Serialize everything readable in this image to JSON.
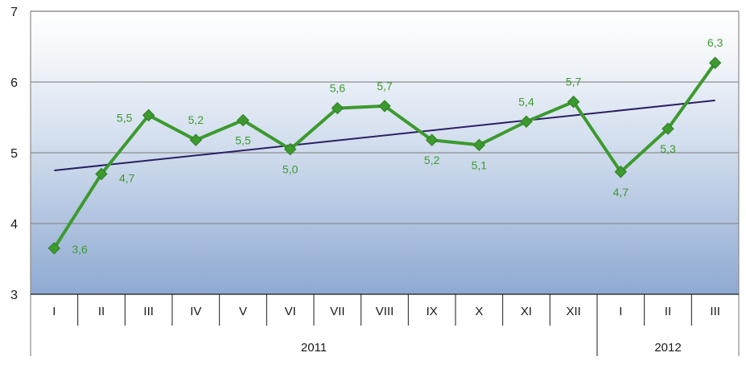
{
  "chart_data": {
    "type": "line",
    "categories": [
      "I",
      "II",
      "III",
      "IV",
      "V",
      "VI",
      "VII",
      "VIII",
      "IX",
      "X",
      "XI",
      "XII",
      "I",
      "II",
      "III"
    ],
    "groups": [
      {
        "label": "2011",
        "count": 12
      },
      {
        "label": "2012",
        "count": 3
      }
    ],
    "series": [
      {
        "values": [
          3.65,
          4.7,
          5.53,
          5.18,
          5.46,
          5.05,
          5.63,
          5.66,
          5.18,
          5.11,
          5.44,
          5.72,
          4.73,
          5.34,
          6.27
        ],
        "labels": [
          "3,6",
          "4,7",
          "5,5",
          "5,2",
          "5,5",
          "5,0",
          "5,6",
          "5,7",
          "5,2",
          "5,1",
          "5,4",
          "5,7",
          "4,7",
          "5,3",
          "6,3"
        ],
        "color": "#3c9a2e"
      }
    ],
    "trend": {
      "start": 4.75,
      "end": 5.74,
      "color": "#2b1f63"
    },
    "ylim": [
      3,
      7
    ],
    "yticks": [
      3,
      4,
      5,
      6,
      7
    ],
    "grid": true,
    "title": "",
    "xlabel": "",
    "ylabel": ""
  }
}
